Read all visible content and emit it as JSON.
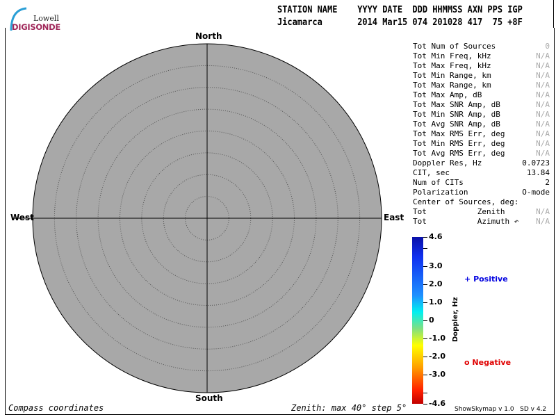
{
  "logo": {
    "line1": "Lowell",
    "line2": "DIGISONDE"
  },
  "header": {
    "labels": "STATION NAME    YYYY DATE  DDD HHMMSS AXN PPS IGP",
    "values": "Jicamarca       2014 Mar15 074 201028 417  75 +8F"
  },
  "compass": {
    "north": "North",
    "south": "South",
    "east": "East",
    "west": "West",
    "background": "#a8a8a8",
    "rings_deg": [
      5,
      10,
      15,
      20,
      25,
      30,
      35,
      40
    ]
  },
  "stats": [
    {
      "label": "Tot Num of Sources",
      "value": "0",
      "dim": true
    },
    {
      "label": "Tot Min Freq, kHz",
      "value": "N/A",
      "dim": true
    },
    {
      "label": "Tot Max Freq, kHz",
      "value": "N/A",
      "dim": true
    },
    {
      "label": "Tot Min Range, km",
      "value": "N/A",
      "dim": true
    },
    {
      "label": "Tot Max Range, km",
      "value": "N/A",
      "dim": true
    },
    {
      "label": "Tot Max Amp, dB",
      "value": "N/A",
      "dim": true
    },
    {
      "label": "Tot Max SNR Amp, dB",
      "value": "N/A",
      "dim": true
    },
    {
      "label": "Tot Min SNR Amp, dB",
      "value": "N/A",
      "dim": true
    },
    {
      "label": "Tot Avg SNR Amp, dB",
      "value": "N/A",
      "dim": true
    },
    {
      "label": "Tot Max RMS Err, deg",
      "value": "N/A",
      "dim": true
    },
    {
      "label": "Tot Min RMS Err, deg",
      "value": "N/A",
      "dim": true
    },
    {
      "label": "Tot Avg RMS Err, deg",
      "value": "N/A",
      "dim": true
    },
    {
      "label": "Doppler Res, Hz",
      "value": "0.0723",
      "dim": false
    },
    {
      "label": "CIT, sec",
      "value": "13.84",
      "dim": false
    },
    {
      "label": "Num of CITs",
      "value": "2",
      "dim": false
    },
    {
      "label": "Polarization",
      "value": "O-mode",
      "dim": false
    },
    {
      "label": "Center of Sources, deg:",
      "value": "",
      "dim": false
    },
    {
      "label": "Tot           Zenith",
      "value": "N/A",
      "dim": true
    },
    {
      "label": "Tot           Azimuth ↶",
      "value": "N/A",
      "dim": true
    }
  ],
  "colorbar": {
    "title": "Doppler, Hz",
    "ticks": [
      "4.6",
      "3.0",
      "2.0",
      "1.0",
      "0",
      "-1.0",
      "-2.0",
      "-3.0",
      "-4.6"
    ]
  },
  "legend": {
    "positive": {
      "symbol": "+",
      "label": "Positive",
      "color": "#0000e0"
    },
    "negative": {
      "symbol": "o",
      "label": "Negative",
      "color": "#e00000"
    }
  },
  "footer": {
    "left": "Compass coordinates",
    "center": "Zenith: max 40°  step 5°",
    "right": "ShowSkymap v 1.0   SD v 4.2"
  }
}
